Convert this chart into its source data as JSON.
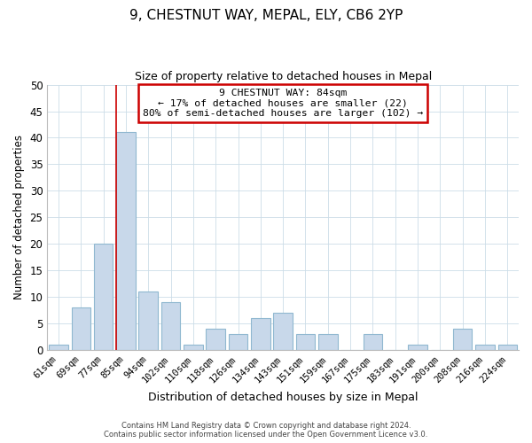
{
  "title_line1": "9, CHESTNUT WAY, MEPAL, ELY, CB6 2YP",
  "title_line2": "Size of property relative to detached houses in Mepal",
  "xlabel": "Distribution of detached houses by size in Mepal",
  "ylabel": "Number of detached properties",
  "bar_labels": [
    "61sqm",
    "69sqm",
    "77sqm",
    "85sqm",
    "94sqm",
    "102sqm",
    "110sqm",
    "118sqm",
    "126sqm",
    "134sqm",
    "143sqm",
    "151sqm",
    "159sqm",
    "167sqm",
    "175sqm",
    "183sqm",
    "191sqm",
    "200sqm",
    "208sqm",
    "216sqm",
    "224sqm"
  ],
  "bar_values": [
    1,
    8,
    20,
    41,
    11,
    9,
    1,
    4,
    3,
    6,
    7,
    3,
    3,
    0,
    3,
    0,
    1,
    0,
    4,
    1,
    1
  ],
  "bar_color": "#c8d8ea",
  "bar_edge_color": "#90b8d0",
  "property_line_index": 3,
  "property_line_color": "#cc0000",
  "ylim": [
    0,
    50
  ],
  "yticks": [
    0,
    5,
    10,
    15,
    20,
    25,
    30,
    35,
    40,
    45,
    50
  ],
  "annotation_box_title": "9 CHESTNUT WAY: 84sqm",
  "annotation_line1": "← 17% of detached houses are smaller (22)",
  "annotation_line2": "80% of semi-detached houses are larger (102) →",
  "annotation_box_color": "#ffffff",
  "annotation_box_edge_color": "#cc0000",
  "footer_line1": "Contains HM Land Registry data © Crown copyright and database right 2024.",
  "footer_line2": "Contains public sector information licensed under the Open Government Licence v3.0.",
  "background_color": "#ffffff",
  "grid_color": "#ccdde8"
}
